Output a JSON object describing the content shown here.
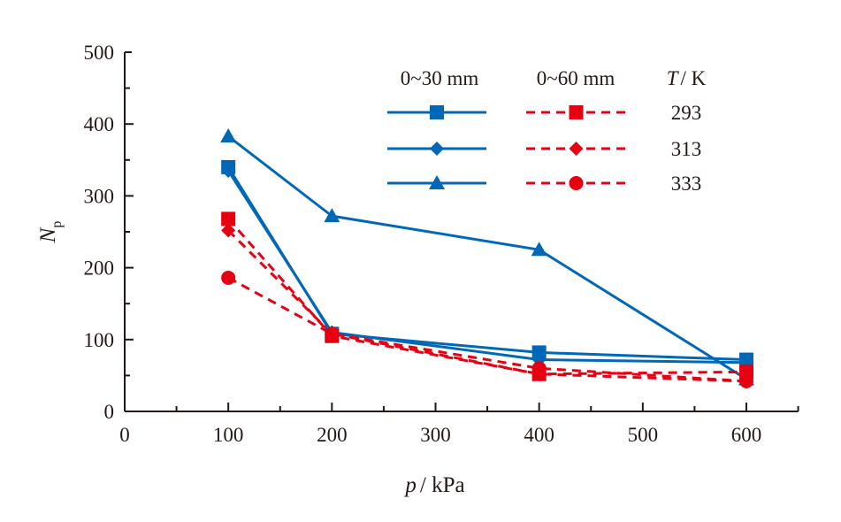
{
  "chart_data": {
    "type": "line",
    "title": "",
    "xlabel_italic": "p",
    "xlabel_unit": "/ kPa",
    "ylabel_main": "N",
    "ylabel_sub": "p",
    "xlim": [
      0,
      650
    ],
    "ylim": [
      0,
      500
    ],
    "xticks": [
      0,
      100,
      200,
      300,
      400,
      500,
      600
    ],
    "xtick_labels": [
      "0",
      "100",
      "200",
      "300",
      "400",
      "500",
      "600"
    ],
    "yticks": [
      0,
      100,
      200,
      300,
      400,
      500
    ],
    "ytick_labels": [
      "0",
      "100",
      "200",
      "300",
      "400",
      "500"
    ],
    "grid": false,
    "legend": {
      "placement": "top-right",
      "col1_header": "0~30 mm",
      "col2_header": "0~60 mm",
      "col3_header_italic": "T",
      "col3_header_unit": "/ K",
      "rows": [
        "293",
        "313",
        "333"
      ]
    },
    "colors": {
      "blue": "#0068b7",
      "red": "#e60012",
      "axis": "#231815"
    },
    "x": [
      100,
      200,
      400,
      600
    ],
    "series": [
      {
        "name": "0~30 mm, 293 K",
        "group": "0~30 mm",
        "T": "293",
        "marker": "square",
        "style": "solid",
        "color": "blue",
        "values": [
          340,
          108,
          82,
          72
        ]
      },
      {
        "name": "0~30 mm, 313 K",
        "group": "0~30 mm",
        "T": "313",
        "marker": "diamond",
        "style": "solid",
        "color": "blue",
        "values": [
          335,
          110,
          72,
          68
        ]
      },
      {
        "name": "0~30 mm, 333 K",
        "group": "0~30 mm",
        "T": "333",
        "marker": "triangle",
        "style": "solid",
        "color": "blue",
        "values": [
          383,
          272,
          225,
          45
        ]
      },
      {
        "name": "0~60 mm, 293 K",
        "group": "0~60 mm",
        "T": "293",
        "marker": "square",
        "style": "dashed",
        "color": "red",
        "values": [
          268,
          105,
          52,
          55
        ]
      },
      {
        "name": "0~60 mm, 313 K",
        "group": "0~60 mm",
        "T": "313",
        "marker": "diamond",
        "style": "dashed",
        "color": "red",
        "values": [
          252,
          108,
          52,
          42
        ]
      },
      {
        "name": "0~60 mm, 333 K",
        "group": "0~60 mm",
        "T": "333",
        "marker": "circle",
        "style": "dashed",
        "color": "red",
        "values": [
          186,
          108,
          60,
          42
        ]
      }
    ]
  }
}
